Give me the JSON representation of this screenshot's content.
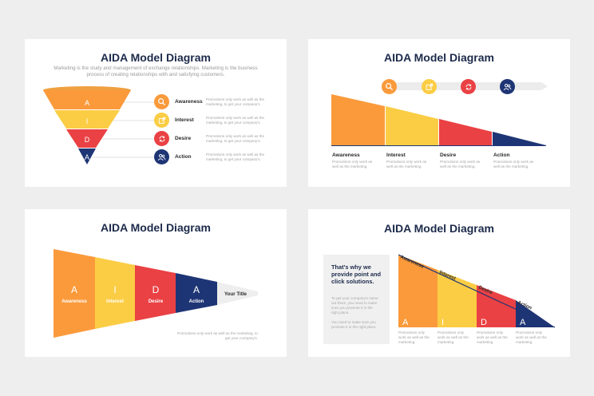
{
  "colors": {
    "orange": "#fb9a3b",
    "yellow": "#fbcd45",
    "red": "#ea4144",
    "navy": "#1e3575",
    "title": "#1d2b4b",
    "gray_text": "#a3a3a3"
  },
  "slide1": {
    "title": "AIDA Model Diagram",
    "subtitle_line1": "Marketing is the study and management of exchange relationships. Marketing is the business",
    "subtitle_line2": "process of creating relationships with and satisfying customers.",
    "funnel_letters": [
      "A",
      "I",
      "D",
      "A"
    ],
    "steps": [
      {
        "icon": "search-icon",
        "label": "Awareness",
        "desc1": "Promotions only work as well as the",
        "desc2": "marketing, to get your company's."
      },
      {
        "icon": "share-icon",
        "label": "Interest",
        "desc1": "Promotions only work as well as the",
        "desc2": "marketing, to get your company's."
      },
      {
        "icon": "refresh-icon",
        "label": "Desire",
        "desc1": "Promotions only work as well as the",
        "desc2": "marketing, to get your company's."
      },
      {
        "icon": "users-icon",
        "label": "Action",
        "desc1": "Promotions only work as well as the",
        "desc2": "marketing, to get your company's."
      }
    ]
  },
  "slide2": {
    "title": "AIDA Model Diagram",
    "icons": [
      "search-icon",
      "share-icon",
      "refresh-icon",
      "users-icon"
    ],
    "steps": [
      {
        "label": "Awareness",
        "desc1": "Promotions only work as",
        "desc2": "well as the marketing."
      },
      {
        "label": "Interest",
        "desc1": "Promotions only work as",
        "desc2": "well as the marketing."
      },
      {
        "label": "Desire",
        "desc1": "Promotions only work as",
        "desc2": "well as the marketing."
      },
      {
        "label": "Action",
        "desc1": "Promotions only work as",
        "desc2": "well as the marketing."
      }
    ]
  },
  "slide3": {
    "title": "AIDA Model Diagram",
    "segments": [
      {
        "letter": "A",
        "label": "Awareness"
      },
      {
        "letter": "I",
        "label": "Interest"
      },
      {
        "letter": "D",
        "label": "Desire"
      },
      {
        "letter": "A",
        "label": "Action"
      }
    ],
    "tip_label": "Your Title",
    "note1": "Promotions only work as well as the marketing, to",
    "note2": "get your company's."
  },
  "slide4": {
    "title": "AIDA Model Diagram",
    "box_heading1": "That's why we",
    "box_heading2": "provide point and",
    "box_heading3": "click solutions.",
    "box_body": [
      "To get your company's name",
      "out there, you need to make",
      "sure you promote it in the",
      "right place.",
      "",
      "You need to make sure you",
      "promote it in the right place."
    ],
    "steps": [
      {
        "letter": "A",
        "label": "Awareness",
        "desc": [
          "Promotions only",
          "work as well as the",
          "marketing."
        ]
      },
      {
        "letter": "I",
        "label": "Interest",
        "desc": [
          "Promotions only",
          "work as well as the",
          "marketing."
        ]
      },
      {
        "letter": "D",
        "label": "Desire",
        "desc": [
          "Promotions only",
          "work as well as the",
          "marketing."
        ]
      },
      {
        "letter": "A",
        "label": "Action",
        "desc": [
          "Promotions only",
          "work as well as the",
          "marketing."
        ]
      }
    ]
  }
}
